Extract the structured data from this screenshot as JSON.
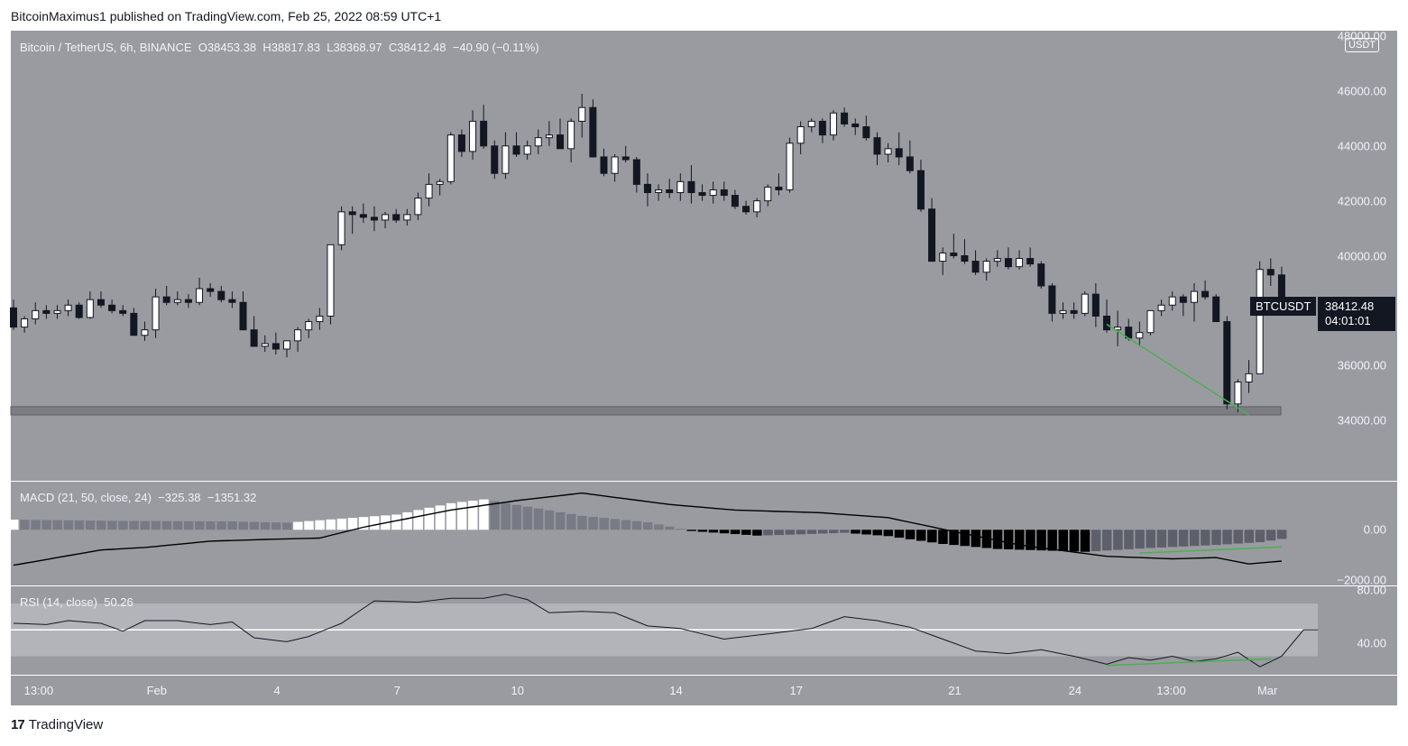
{
  "header": {
    "publisher_line": "BitcoinMaximus1 published on TradingView.com, Feb 25, 2022 08:59 UTC+1"
  },
  "branding": {
    "logo_text": "TradingView",
    "logo_mark": "17"
  },
  "colors": {
    "pane_bg": "#9a9ba1",
    "up_candle": "#ffffff",
    "down_candle": "#131722",
    "divergence_line": "#4caf50",
    "support_zone": "#7c7d83"
  },
  "legend": {
    "symbol": "Bitcoin / TetherUS, 6h, BINANCE",
    "o_label": "O",
    "o_value": "38453.38",
    "h_label": "H",
    "h_value": "38817.83",
    "l_label": "L",
    "l_value": "38368.97",
    "c_label": "C",
    "c_value": "38412.48",
    "change": "−40.90 (−0.11%)"
  },
  "currency_badge": "USDT",
  "last_price": {
    "symbol": "BTCUSDT",
    "price": "38412.48",
    "countdown": "04:01:01"
  },
  "macd_legend": {
    "title": "MACD (21, 50, close, 24)",
    "v1": "−325.38",
    "v2": "−1351.32"
  },
  "rsi_legend": {
    "title": "RSI (14, close)",
    "value": "50.26"
  },
  "chart_data": [
    {
      "type": "candlestick",
      "title": "Bitcoin / TetherUS, 6h, BINANCE",
      "y_range": [
        31800,
        48200
      ],
      "y_ticks": [
        "34000.00",
        "36000.00",
        "38000.00",
        "40000.00",
        "42000.00",
        "44000.00",
        "46000.00",
        "48000.00"
      ],
      "y_tick_values": [
        34000,
        36000,
        38000,
        40000,
        42000,
        44000,
        46000,
        48000
      ],
      "x_ticks": [
        {
          "label": "13:00",
          "bar": 2.3
        },
        {
          "label": "Feb",
          "bar": 13.1
        },
        {
          "label": "4",
          "bar": 24.1
        },
        {
          "label": "7",
          "bar": 35.1
        },
        {
          "label": "10",
          "bar": 46.1
        },
        {
          "label": "14",
          "bar": 60.6
        },
        {
          "label": "17",
          "bar": 71.6
        },
        {
          "label": "21",
          "bar": 86.1
        },
        {
          "label": "24",
          "bar": 97.1
        },
        {
          "label": "13:00",
          "bar": 105.9
        },
        {
          "label": "Mar",
          "bar": 114.7
        }
      ],
      "ohlc": [
        [
          38100,
          38400,
          37300,
          37400
        ],
        [
          37400,
          37800,
          37200,
          37700
        ],
        [
          37700,
          38300,
          37500,
          38000
        ],
        [
          38000,
          38200,
          37700,
          37900
        ],
        [
          37900,
          38200,
          37700,
          38000
        ],
        [
          38000,
          38400,
          37800,
          38200
        ],
        [
          38200,
          38300,
          37700,
          37750
        ],
        [
          37750,
          38700,
          37700,
          38400
        ],
        [
          38400,
          38700,
          38100,
          38200
        ],
        [
          38200,
          38400,
          37900,
          38000
        ],
        [
          38000,
          38200,
          37800,
          37900
        ],
        [
          37900,
          38100,
          37100,
          37100
        ],
        [
          37100,
          37600,
          36900,
          37300
        ],
        [
          37300,
          38800,
          37000,
          38500
        ],
        [
          38500,
          38900,
          38200,
          38300
        ],
        [
          38300,
          38700,
          38200,
          38400
        ],
        [
          38400,
          38600,
          38100,
          38300
        ],
        [
          38300,
          39200,
          38200,
          38800
        ],
        [
          38800,
          39000,
          38500,
          38700
        ],
        [
          38700,
          38900,
          38300,
          38400
        ],
        [
          38400,
          38700,
          38100,
          38300
        ],
        [
          38300,
          38700,
          37300,
          37300
        ],
        [
          37300,
          37800,
          36800,
          36700
        ],
        [
          36700,
          37100,
          36500,
          36800
        ],
        [
          36800,
          37200,
          36400,
          36600
        ],
        [
          36600,
          36900,
          36300,
          36900
        ],
        [
          36900,
          37400,
          36500,
          37300
        ],
        [
          37300,
          37700,
          37000,
          37600
        ],
        [
          37600,
          38100,
          37300,
          37800
        ],
        [
          37800,
          40400,
          37500,
          40400
        ],
        [
          40400,
          41800,
          40200,
          41600
        ],
        [
          41600,
          41800,
          40800,
          41500
        ],
        [
          41500,
          41900,
          41200,
          41400
        ],
        [
          41400,
          41800,
          40900,
          41300
        ],
        [
          41300,
          41600,
          41000,
          41500
        ],
        [
          41500,
          41700,
          41200,
          41300
        ],
        [
          41300,
          41700,
          41100,
          41500
        ],
        [
          41500,
          42300,
          41300,
          42100
        ],
        [
          42100,
          43000,
          41800,
          42600
        ],
        [
          42600,
          42800,
          42200,
          42700
        ],
        [
          42700,
          44500,
          42600,
          44400
        ],
        [
          44400,
          44600,
          43600,
          43800
        ],
        [
          43800,
          45300,
          43500,
          44900
        ],
        [
          44900,
          45500,
          43900,
          44000
        ],
        [
          44000,
          44200,
          42800,
          43000
        ],
        [
          43000,
          44500,
          42800,
          44000
        ],
        [
          44000,
          44500,
          43600,
          43700
        ],
        [
          43700,
          44200,
          43500,
          44000
        ],
        [
          44000,
          44600,
          43700,
          44300
        ],
        [
          44300,
          44900,
          44000,
          44400
        ],
        [
          44400,
          45000,
          43900,
          43900
        ],
        [
          43900,
          45000,
          43400,
          44900
        ],
        [
          44900,
          45900,
          44300,
          45400
        ],
        [
          45400,
          45700,
          43600,
          43600
        ],
        [
          43600,
          43900,
          42900,
          43000
        ],
        [
          43000,
          43700,
          42700,
          43600
        ],
        [
          43600,
          44000,
          43400,
          43500
        ],
        [
          43500,
          43600,
          42300,
          42600
        ],
        [
          42600,
          43000,
          41800,
          42300
        ],
        [
          42300,
          42600,
          42000,
          42400
        ],
        [
          42400,
          42800,
          42100,
          42300
        ],
        [
          42300,
          43000,
          42000,
          42700
        ],
        [
          42700,
          43300,
          41900,
          42300
        ],
        [
          42300,
          42600,
          42000,
          42200
        ],
        [
          42200,
          42700,
          41900,
          42400
        ],
        [
          42400,
          42700,
          42000,
          42200
        ],
        [
          42200,
          42400,
          41700,
          41800
        ],
        [
          41800,
          42000,
          41500,
          41600
        ],
        [
          41600,
          42100,
          41400,
          42000
        ],
        [
          42000,
          42600,
          41800,
          42500
        ],
        [
          42500,
          43000,
          42200,
          42400
        ],
        [
          42400,
          44300,
          42300,
          44100
        ],
        [
          44100,
          44900,
          43700,
          44700
        ],
        [
          44700,
          45000,
          44500,
          44900
        ],
        [
          44900,
          45000,
          44100,
          44400
        ],
        [
          44400,
          45300,
          44200,
          45200
        ],
        [
          45200,
          45400,
          44700,
          44800
        ],
        [
          44800,
          45000,
          44400,
          44700
        ],
        [
          44700,
          45100,
          44200,
          44300
        ],
        [
          44300,
          44500,
          43300,
          43700
        ],
        [
          43700,
          44100,
          43400,
          43900
        ],
        [
          43900,
          44500,
          43300,
          43600
        ],
        [
          43600,
          44200,
          43000,
          43100
        ],
        [
          43100,
          43500,
          41600,
          41700
        ],
        [
          41700,
          42100,
          39800,
          39800
        ],
        [
          39800,
          40300,
          39300,
          40100
        ],
        [
          40100,
          40800,
          39900,
          40000
        ],
        [
          40000,
          40600,
          39700,
          39800
        ],
        [
          39800,
          40200,
          39300,
          39400
        ],
        [
          39400,
          39900,
          39100,
          39800
        ],
        [
          39800,
          40200,
          39600,
          39900
        ],
        [
          39900,
          40300,
          39500,
          39600
        ],
        [
          39600,
          40200,
          39500,
          39900
        ],
        [
          39900,
          40300,
          39600,
          39700
        ],
        [
          39700,
          39800,
          38800,
          38900
        ],
        [
          38900,
          39000,
          37600,
          37900
        ],
        [
          37900,
          38300,
          37700,
          38000
        ],
        [
          38000,
          38300,
          37700,
          37900
        ],
        [
          37900,
          38700,
          37800,
          38600
        ],
        [
          38600,
          39000,
          37400,
          37800
        ],
        [
          37800,
          38400,
          37200,
          37300
        ],
        [
          37300,
          38000,
          36700,
          37400
        ],
        [
          37400,
          37700,
          36900,
          37000
        ],
        [
          37000,
          37600,
          36700,
          37200
        ],
        [
          37200,
          38000,
          37100,
          38000
        ],
        [
          38000,
          38400,
          37800,
          38200
        ],
        [
          38200,
          38700,
          38000,
          38500
        ],
        [
          38500,
          38600,
          37800,
          38300
        ],
        [
          38300,
          39000,
          37600,
          38700
        ],
        [
          38700,
          39100,
          38400,
          38500
        ],
        [
          38500,
          38600,
          37600,
          37600
        ],
        [
          37600,
          37800,
          34400,
          34600
        ],
        [
          34600,
          35500,
          34300,
          35400
        ],
        [
          35400,
          36200,
          35000,
          35700
        ],
        [
          35700,
          39800,
          35700,
          39500
        ],
        [
          39500,
          39900,
          38900,
          39300
        ],
        [
          39300,
          39600,
          38400,
          38400
        ]
      ],
      "support_zone": [
        34200,
        34500
      ],
      "divergence_line": {
        "from_bar": 100,
        "from_price": 37500,
        "to_bar": 113,
        "to_price": 34200
      }
    },
    {
      "type": "bar",
      "title": "MACD (21, 50, close, 24)",
      "y_range": [
        -2200,
        1900
      ],
      "y_ticks": [
        "0.00",
        "−2000.00"
      ],
      "y_tick_values": [
        0,
        -2000
      ],
      "histogram_anchors": [
        [
          0,
          400
        ],
        [
          10,
          350
        ],
        [
          20,
          330
        ],
        [
          25,
          280
        ],
        [
          35,
          600
        ],
        [
          40,
          1050
        ],
        [
          43,
          1200
        ],
        [
          52,
          550
        ],
        [
          58,
          300
        ],
        [
          62,
          -50
        ],
        [
          68,
          -230
        ],
        [
          72,
          -180
        ],
        [
          76,
          -120
        ],
        [
          80,
          -250
        ],
        [
          85,
          -560
        ],
        [
          90,
          -760
        ],
        [
          98,
          -870
        ],
        [
          104,
          -720
        ],
        [
          110,
          -600
        ],
        [
          114,
          -490
        ],
        [
          117,
          -300
        ]
      ],
      "macd_line_anchors": [
        [
          0,
          -1400
        ],
        [
          8,
          -800
        ],
        [
          12,
          -700
        ],
        [
          18,
          -450
        ],
        [
          24,
          -370
        ],
        [
          28,
          -330
        ],
        [
          32,
          100
        ],
        [
          40,
          780
        ],
        [
          46,
          1150
        ],
        [
          52,
          1450
        ],
        [
          60,
          1000
        ],
        [
          66,
          780
        ],
        [
          74,
          670
        ],
        [
          80,
          480
        ],
        [
          86,
          -70
        ],
        [
          92,
          -600
        ],
        [
          100,
          -1050
        ],
        [
          106,
          -1150
        ],
        [
          110,
          -1100
        ],
        [
          113,
          -1350
        ],
        [
          117,
          -1200
        ]
      ],
      "divergence_line": {
        "from_bar": 103,
        "from_value": -920,
        "to_bar": 116,
        "to_value": -680
      }
    },
    {
      "type": "line",
      "title": "RSI (14, close)",
      "y_range": [
        16,
        83
      ],
      "y_ticks": [
        "40.00",
        "80.00"
      ],
      "y_tick_values": [
        40,
        80
      ],
      "band": [
        30,
        70
      ],
      "midline": 50,
      "rsi_anchors": [
        [
          0,
          55
        ],
        [
          3,
          54
        ],
        [
          5,
          57
        ],
        [
          8,
          55
        ],
        [
          10,
          49
        ],
        [
          12,
          57
        ],
        [
          15,
          57
        ],
        [
          18,
          54
        ],
        [
          20,
          56
        ],
        [
          22,
          44
        ],
        [
          25,
          41
        ],
        [
          27,
          45
        ],
        [
          30,
          55
        ],
        [
          33,
          72
        ],
        [
          37,
          71
        ],
        [
          40,
          74
        ],
        [
          43,
          74
        ],
        [
          45,
          77
        ],
        [
          47,
          73
        ],
        [
          49,
          63
        ],
        [
          52,
          64
        ],
        [
          55,
          63
        ],
        [
          58,
          53
        ],
        [
          61,
          51
        ],
        [
          63,
          47
        ],
        [
          65,
          43
        ],
        [
          70,
          48
        ],
        [
          73,
          51
        ],
        [
          76,
          60
        ],
        [
          79,
          57
        ],
        [
          82,
          52
        ],
        [
          85,
          43
        ],
        [
          88,
          34
        ],
        [
          91,
          32
        ],
        [
          94,
          35
        ],
        [
          97,
          30
        ],
        [
          100,
          24
        ],
        [
          102,
          29
        ],
        [
          104,
          27
        ],
        [
          106,
          30
        ],
        [
          108,
          26
        ],
        [
          110,
          28
        ],
        [
          112,
          33
        ],
        [
          114,
          22
        ],
        [
          116,
          30
        ],
        [
          118,
          50
        ],
        [
          120,
          50
        ]
      ],
      "divergence_line": {
        "from_bar": 100,
        "from_value": 23,
        "to_bar": 115,
        "to_value": 28
      }
    }
  ]
}
